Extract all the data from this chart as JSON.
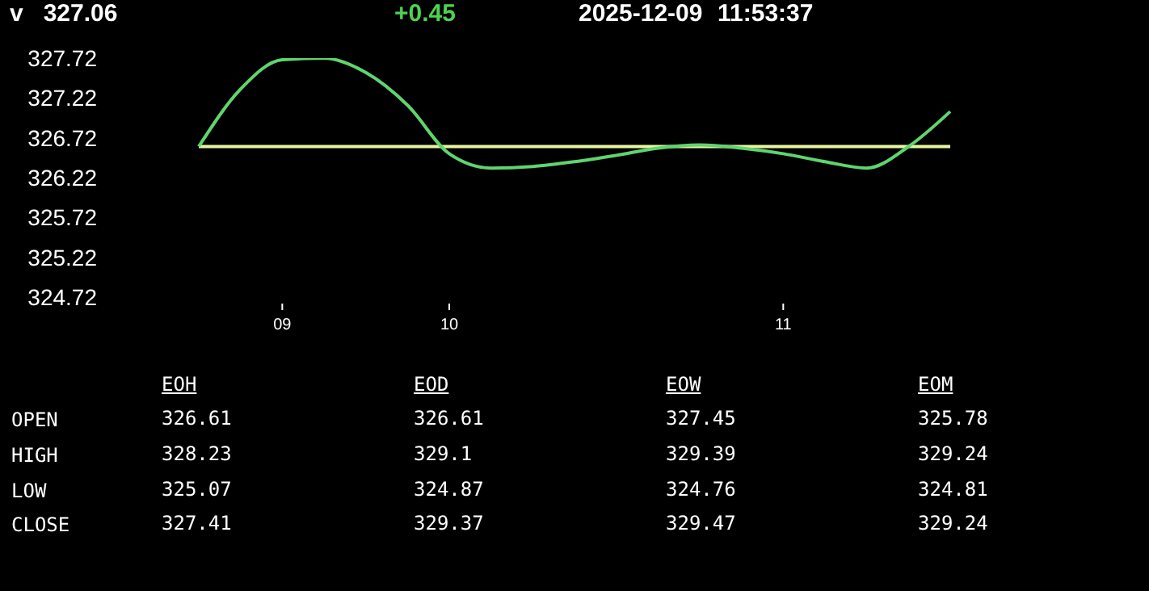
{
  "chart_data": [
    {
      "type": "line",
      "title": "v   327.06",
      "annotations": [
        "+0.45",
        "2025-12-09",
        "11:53:37"
      ],
      "categories": [
        null,
        null,
        "09",
        null,
        null,
        null,
        "10",
        null,
        null,
        null,
        null,
        null,
        null,
        null,
        "11",
        null,
        null,
        null,
        null
      ],
      "series": [
        {
          "color": "#5fd46f",
          "values": [
            326.61,
            327.33,
            327.7,
            327.72,
            327.54,
            327.13,
            326.52,
            326.34,
            326.36,
            326.42,
            326.5,
            326.59,
            326.63,
            326.59,
            326.52,
            326.42,
            326.34,
            326.61,
            327.05
          ]
        }
      ],
      "ylim": [
        324.72,
        327.72
      ],
      "yticks": [
        324.72,
        325.22,
        325.72,
        326.22,
        326.72,
        327.22,
        327.72
      ],
      "ref_lines": [
        {
          "axis": "y",
          "value": 326.61,
          "color": "#e8f5a0"
        }
      ],
      "marker": "none",
      "line_style": "solid"
    },
    {
      "type": "heatmap",
      "categories": [
        "EOH",
        "EOD",
        "EOW",
        "EOM"
      ],
      "y_categories": [
        "OPEN",
        "HIGH",
        "LOW",
        "CLOSE"
      ],
      "cells": [
        [
          326.61,
          326.61,
          327.45,
          325.78
        ],
        [
          328.23,
          329.1,
          329.39,
          329.24
        ],
        [
          325.07,
          324.87,
          324.76,
          324.81
        ],
        [
          327.41,
          329.37,
          329.47,
          329.24
        ]
      ],
      "data_labels": true
    }
  ]
}
